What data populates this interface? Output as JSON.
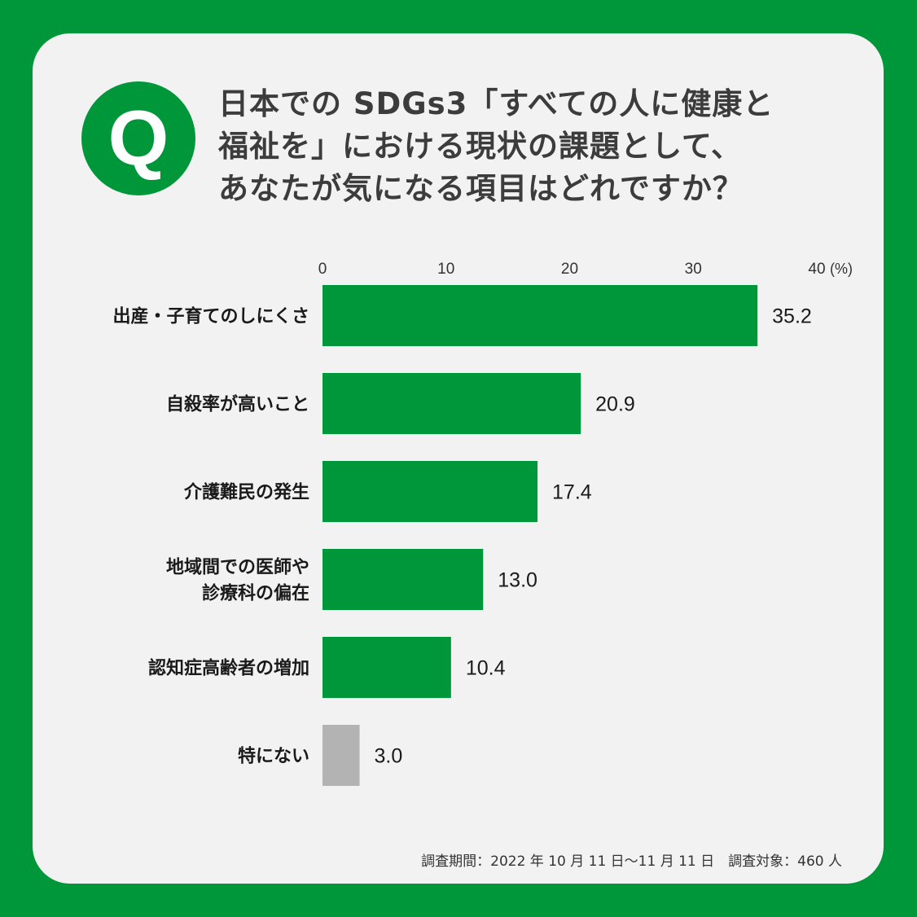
{
  "badge": "Q",
  "title_lines": [
    "日本での SDGs3「すべての人に健康と",
    "福祉を」における現状の課題として、",
    "あなたが気になる項目はどれですか？"
  ],
  "footer": "調査期間：2022 年 10 月 11 日〜11 月 11 日　調査対象：460 人",
  "chart_data": {
    "type": "bar",
    "orientation": "horizontal",
    "categories": [
      [
        "出産・子育てのしにくさ"
      ],
      [
        "自殺率が高いこと"
      ],
      [
        "介護難民の発生"
      ],
      [
        "地域間での医師や",
        "診療科の偏在"
      ],
      [
        "認知症高齢者の増加"
      ],
      [
        "特にない"
      ]
    ],
    "values": [
      35.2,
      20.9,
      17.4,
      13.0,
      10.4,
      3.0
    ],
    "value_labels": [
      "35.2",
      "20.9",
      "17.4",
      "13.0",
      "10.4",
      "3.0"
    ],
    "colors": [
      "#00973a",
      "#00973a",
      "#00973a",
      "#00973a",
      "#00973a",
      "#b3b3b3"
    ],
    "xlim": [
      0,
      40
    ],
    "ticks": [
      "0",
      "10",
      "20",
      "30",
      "40"
    ],
    "unit": "(%)",
    "grid": false
  }
}
